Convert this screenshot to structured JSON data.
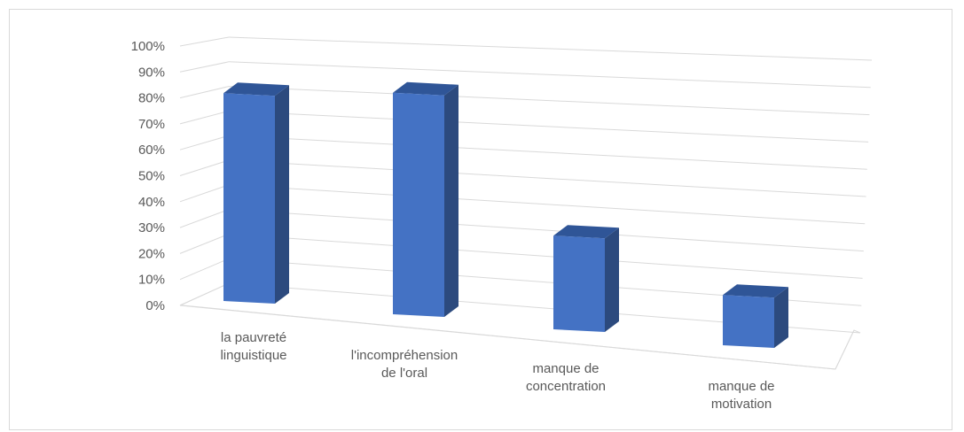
{
  "chart_data": {
    "type": "bar",
    "title": "",
    "xlabel": "",
    "ylabel": "",
    "ylim": [
      0,
      100
    ],
    "y_tick_labels": [
      "0%",
      "10%",
      "20%",
      "30%",
      "40%",
      "50%",
      "60%",
      "70%",
      "80%",
      "90%",
      "100%"
    ],
    "categories": [
      [
        "la pauvreté",
        "linguistique"
      ],
      [
        "l'incompréhension",
        "de l'oral"
      ],
      [
        "manque de",
        "concentration"
      ],
      [
        "manque de",
        "motivation"
      ]
    ],
    "values": [
      91,
      97,
      41,
      22
    ],
    "grid": true,
    "legend": "none",
    "style": "3d-column",
    "colors": {
      "bar_front": "#4472c4",
      "bar_top": "#2f5597",
      "bar_side": "#2c4a7e",
      "gridline": "#d9d9d9",
      "text": "#595959"
    }
  }
}
